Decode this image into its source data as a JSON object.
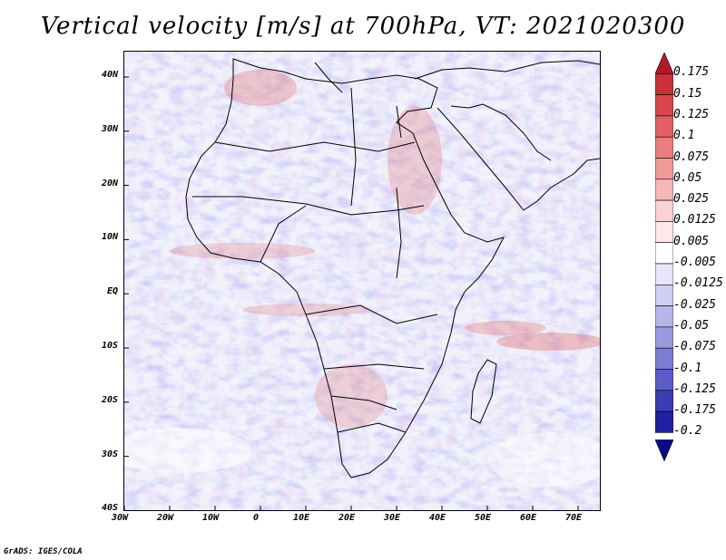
{
  "title": "Vertical velocity [m/s] at 700hPa, VT: 2021020300",
  "footer": "GrADS: IGES/COLA",
  "map": {
    "region": "Africa",
    "variable": "Vertical velocity",
    "units": "m/s",
    "level": "700hPa",
    "valid_time": "2021020300",
    "lon_ticks": [
      "30W",
      "20W",
      "10W",
      "0",
      "10E",
      "20E",
      "30E",
      "40E",
      "50E",
      "60E",
      "70E"
    ],
    "lat_ticks": [
      "40N",
      "30N",
      "20N",
      "10N",
      "EQ",
      "10S",
      "20S",
      "30S",
      "40S"
    ],
    "land_color": "#dcdcf5",
    "ocean_color": "#f2f2fb",
    "coast_color": "#000000"
  },
  "colorbar": {
    "labels": [
      "0.175",
      "0.15",
      "0.125",
      "0.1",
      "0.075",
      "0.05",
      "0.025",
      "0.0125",
      "0.005",
      "-0.005",
      "-0.0125",
      "-0.025",
      "-0.05",
      "-0.075",
      "-0.1",
      "-0.125",
      "-0.175",
      "-0.2"
    ],
    "colors": [
      "#b2182b",
      "#c8303a",
      "#d8464c",
      "#e25f63",
      "#eb7c7e",
      "#f19a9a",
      "#f6b7b6",
      "#f9d2d1",
      "#fce8e8",
      "#ffffff",
      "#e6e6f8",
      "#cfcff2",
      "#b6b6ea",
      "#9a9ae0",
      "#7c7cd4",
      "#5c5cc6",
      "#3c3cb4",
      "#2020a0",
      "#0a0a8a"
    ]
  }
}
